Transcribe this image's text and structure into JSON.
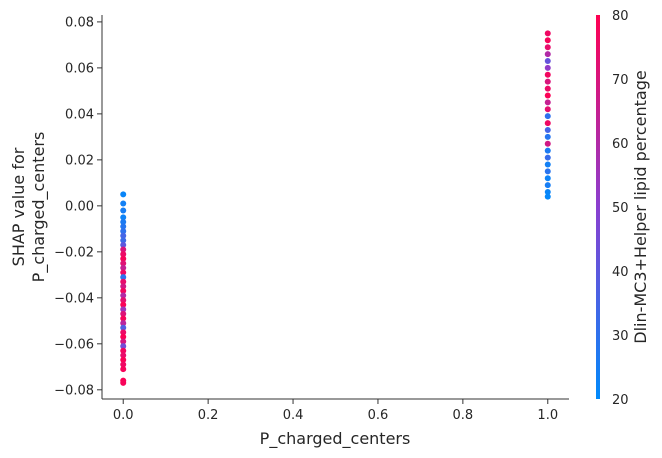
{
  "chart_data": {
    "type": "scatter",
    "title": "",
    "xlabel": "P_charged_centers",
    "ylabel_lines": [
      "SHAP value for",
      "P_charged_centers"
    ],
    "xlim": [
      -0.05,
      1.05
    ],
    "ylim": [
      -0.084,
      0.083
    ],
    "x_ticks": [
      0.0,
      0.2,
      0.4,
      0.6,
      0.8,
      1.0
    ],
    "x_tick_labels": [
      "0.0",
      "0.2",
      "0.4",
      "0.6",
      "0.8",
      "1.0"
    ],
    "y_ticks": [
      -0.08,
      -0.06,
      -0.04,
      -0.02,
      0.0,
      0.02,
      0.04,
      0.06,
      0.08
    ],
    "y_tick_labels": [
      "−0.08",
      "−0.06",
      "−0.04",
      "−0.02",
      "0.00",
      "0.02",
      "0.04",
      "0.06",
      "0.08"
    ],
    "grid": false,
    "colorbar": {
      "label": "Dlin-MC3+Helper lipid percentage",
      "range": [
        20,
        80
      ],
      "ticks": [
        20,
        30,
        40,
        50,
        60,
        70,
        80
      ],
      "tick_labels": [
        "20",
        "30",
        "40",
        "50",
        "60",
        "70",
        "80"
      ],
      "color_low": "#008afb",
      "color_high": "#ff0052"
    },
    "points": [
      {
        "x": 0,
        "y": 0.005,
        "c": 22
      },
      {
        "x": 0,
        "y": 0.001,
        "c": 24
      },
      {
        "x": 0,
        "y": -0.002,
        "c": 25
      },
      {
        "x": 0,
        "y": -0.005,
        "c": 23
      },
      {
        "x": 0,
        "y": -0.007,
        "c": 26
      },
      {
        "x": 0,
        "y": -0.009,
        "c": 28
      },
      {
        "x": 0,
        "y": -0.011,
        "c": 30
      },
      {
        "x": 0,
        "y": -0.013,
        "c": 35
      },
      {
        "x": 0,
        "y": -0.015,
        "c": 33
      },
      {
        "x": 0,
        "y": -0.017,
        "c": 40
      },
      {
        "x": 0,
        "y": -0.019,
        "c": 70
      },
      {
        "x": 0,
        "y": -0.021,
        "c": 75
      },
      {
        "x": 0,
        "y": -0.023,
        "c": 78
      },
      {
        "x": 0,
        "y": -0.025,
        "c": 72
      },
      {
        "x": 0,
        "y": -0.027,
        "c": 65
      },
      {
        "x": 0,
        "y": -0.029,
        "c": 76
      },
      {
        "x": 0,
        "y": -0.031,
        "c": 30
      },
      {
        "x": 0,
        "y": -0.033,
        "c": 74
      },
      {
        "x": 0,
        "y": -0.035,
        "c": 68
      },
      {
        "x": 0,
        "y": -0.037,
        "c": 77
      },
      {
        "x": 0,
        "y": -0.039,
        "c": 60
      },
      {
        "x": 0,
        "y": -0.041,
        "c": 73
      },
      {
        "x": 0,
        "y": -0.043,
        "c": 79
      },
      {
        "x": 0,
        "y": -0.045,
        "c": 55
      },
      {
        "x": 0,
        "y": -0.047,
        "c": 71
      },
      {
        "x": 0,
        "y": -0.049,
        "c": 78
      },
      {
        "x": 0,
        "y": -0.051,
        "c": 62
      },
      {
        "x": 0,
        "y": -0.053,
        "c": 38
      },
      {
        "x": 0,
        "y": -0.055,
        "c": 75
      },
      {
        "x": 0,
        "y": -0.057,
        "c": 79
      },
      {
        "x": 0,
        "y": -0.059,
        "c": 69
      },
      {
        "x": 0,
        "y": -0.061,
        "c": 45
      },
      {
        "x": 0,
        "y": -0.063,
        "c": 77
      },
      {
        "x": 0,
        "y": -0.065,
        "c": 74
      },
      {
        "x": 0,
        "y": -0.067,
        "c": 79
      },
      {
        "x": 0,
        "y": -0.069,
        "c": 76
      },
      {
        "x": 0,
        "y": -0.071,
        "c": 78
      },
      {
        "x": 0,
        "y": -0.076,
        "c": 79
      },
      {
        "x": 0,
        "y": -0.077,
        "c": 78
      },
      {
        "x": 1,
        "y": 0.075,
        "c": 76
      },
      {
        "x": 1,
        "y": 0.072,
        "c": 78
      },
      {
        "x": 1,
        "y": 0.069,
        "c": 74
      },
      {
        "x": 1,
        "y": 0.066,
        "c": 60
      },
      {
        "x": 1,
        "y": 0.063,
        "c": 42
      },
      {
        "x": 1,
        "y": 0.06,
        "c": 52
      },
      {
        "x": 1,
        "y": 0.057,
        "c": 77
      },
      {
        "x": 1,
        "y": 0.054,
        "c": 70
      },
      {
        "x": 1,
        "y": 0.051,
        "c": 75
      },
      {
        "x": 1,
        "y": 0.048,
        "c": 79
      },
      {
        "x": 1,
        "y": 0.045,
        "c": 65
      },
      {
        "x": 1,
        "y": 0.042,
        "c": 73
      },
      {
        "x": 1,
        "y": 0.039,
        "c": 30
      },
      {
        "x": 1,
        "y": 0.036,
        "c": 76
      },
      {
        "x": 1,
        "y": 0.033,
        "c": 35
      },
      {
        "x": 1,
        "y": 0.03,
        "c": 28
      },
      {
        "x": 1,
        "y": 0.027,
        "c": 68
      },
      {
        "x": 1,
        "y": 0.024,
        "c": 26
      },
      {
        "x": 1,
        "y": 0.021,
        "c": 32
      },
      {
        "x": 1,
        "y": 0.018,
        "c": 24
      },
      {
        "x": 1,
        "y": 0.015,
        "c": 29
      },
      {
        "x": 1,
        "y": 0.012,
        "c": 23
      },
      {
        "x": 1,
        "y": 0.009,
        "c": 25
      },
      {
        "x": 1,
        "y": 0.006,
        "c": 22
      },
      {
        "x": 1,
        "y": 0.004,
        "c": 21
      }
    ]
  }
}
